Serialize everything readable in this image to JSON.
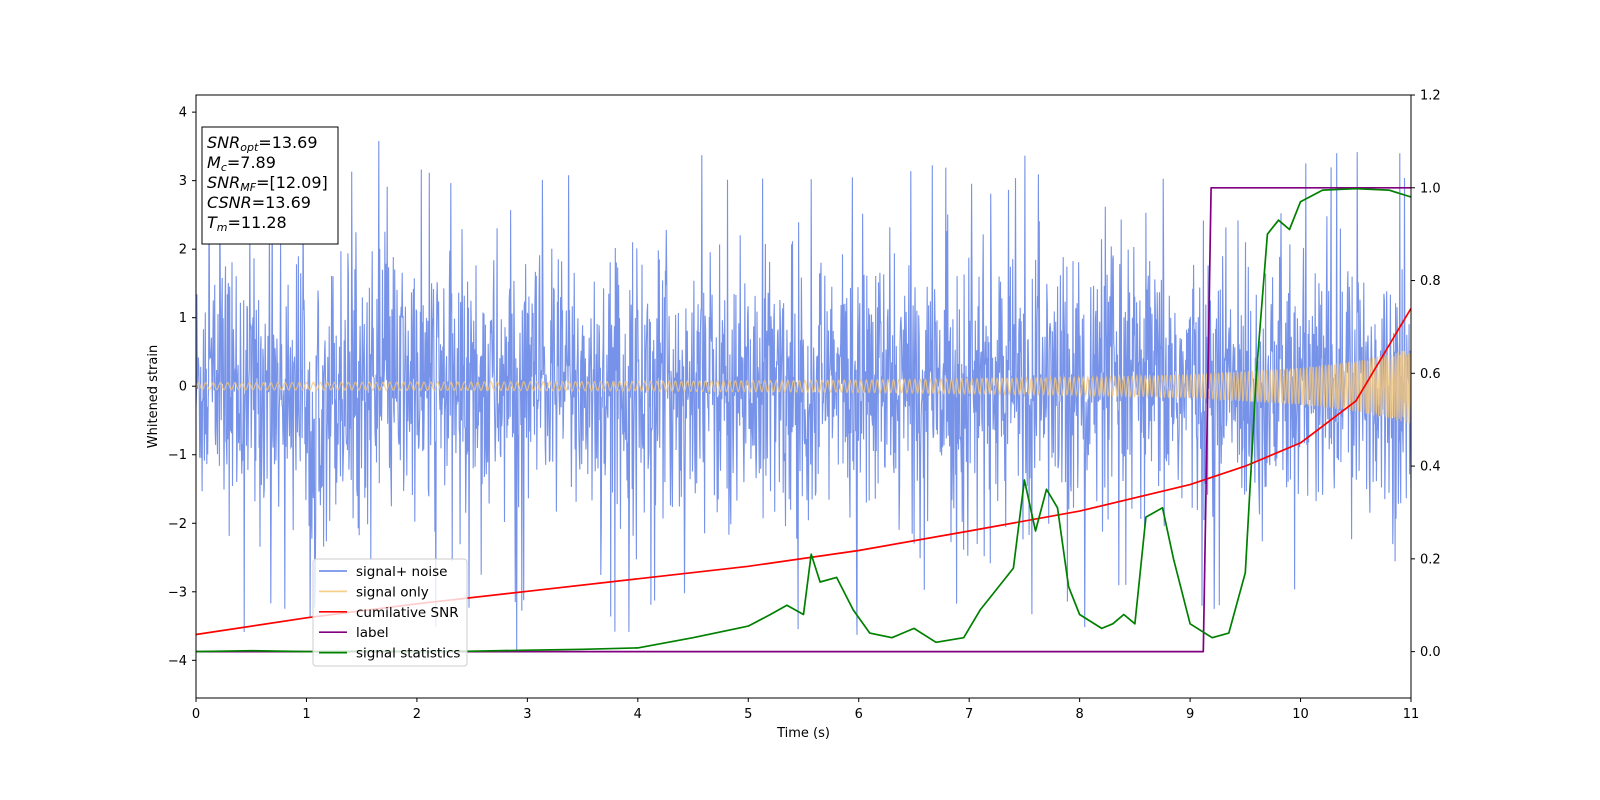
{
  "chart_data": {
    "type": "line",
    "xlabel": "Time (s)",
    "ylabel_left": "Whitened strain",
    "ylabel_right": "",
    "xlim": [
      0,
      11
    ],
    "ylim_left": [
      -4.55,
      4.25
    ],
    "ylim_right": [
      -0.1,
      1.2
    ],
    "x_ticks": [
      0,
      1,
      2,
      3,
      4,
      5,
      6,
      7,
      8,
      9,
      10,
      11
    ],
    "y_ticks_left": [
      -4,
      -3,
      -2,
      -1,
      0,
      1,
      2,
      3,
      4
    ],
    "y_ticks_right": [
      0.0,
      0.2,
      0.4,
      0.6,
      0.8,
      1.0,
      1.2
    ],
    "grid": false,
    "legend_position": "lower-left",
    "annotation": {
      "lines": [
        {
          "main": "SNR",
          "sub": "opt",
          "rest": "=13.69"
        },
        {
          "main": "M",
          "sub": "c",
          "rest": "=7.89"
        },
        {
          "main": "SNR",
          "sub": "MF",
          "rest": "=[12.09]"
        },
        {
          "main": "CSNR",
          "sub": "",
          "rest": "=13.69"
        },
        {
          "main": "T",
          "sub": "m",
          "rest": "=11.28"
        }
      ]
    },
    "series": [
      {
        "name": "signal+ noise",
        "axis": "left",
        "color": "#6f8ce8",
        "style": "noise",
        "noise_envelope_typical": 1.4,
        "noise_extreme_min": -4.15,
        "noise_extreme_max": 3.6,
        "signal_amplitude_start": 0.05,
        "signal_amplitude_end": 0.55
      },
      {
        "name": "signal only",
        "axis": "left",
        "color": "#f5c77a",
        "style": "chirp",
        "envelope_x": [
          0,
          2,
          4,
          6,
          8,
          9,
          10,
          10.5,
          11
        ],
        "envelope_y": [
          0.05,
          0.06,
          0.07,
          0.09,
          0.13,
          0.17,
          0.27,
          0.37,
          0.55
        ]
      },
      {
        "name": "cumilative SNR",
        "axis": "right",
        "color": "#ff0000",
        "x": [
          0,
          1,
          2,
          3,
          4,
          5,
          6,
          7,
          8,
          9,
          9.5,
          10,
          10.5,
          11
        ],
        "y": [
          0.037,
          0.073,
          0.103,
          0.13,
          0.157,
          0.184,
          0.218,
          0.26,
          0.303,
          0.36,
          0.4,
          0.45,
          0.54,
          0.74
        ]
      },
      {
        "name": "label",
        "axis": "right",
        "color": "#800080",
        "x": [
          0,
          9.12,
          9.19,
          11
        ],
        "y": [
          0,
          0,
          1,
          1
        ]
      },
      {
        "name": "signal statistics",
        "axis": "right",
        "color": "#008000",
        "x": [
          0,
          0.5,
          1,
          1.5,
          2,
          2.5,
          3,
          3.5,
          4,
          4.5,
          4.9,
          5.0,
          5.2,
          5.35,
          5.5,
          5.57,
          5.65,
          5.8,
          5.95,
          6.1,
          6.3,
          6.5,
          6.7,
          6.95,
          7.1,
          7.2,
          7.4,
          7.5,
          7.6,
          7.7,
          7.8,
          7.9,
          8.0,
          8.2,
          8.3,
          8.4,
          8.5,
          8.6,
          8.75,
          8.85,
          9.0,
          9.2,
          9.35,
          9.5,
          9.6,
          9.7,
          9.8,
          9.9,
          10.0,
          10.2,
          10.5,
          10.8,
          11
        ],
        "y": [
          0.0,
          0.002,
          0.0,
          0.001,
          0.0,
          0.001,
          0.003,
          0.005,
          0.008,
          0.03,
          0.05,
          0.055,
          0.08,
          0.1,
          0.08,
          0.21,
          0.15,
          0.16,
          0.09,
          0.04,
          0.03,
          0.05,
          0.02,
          0.03,
          0.09,
          0.12,
          0.18,
          0.37,
          0.26,
          0.35,
          0.31,
          0.14,
          0.08,
          0.05,
          0.06,
          0.08,
          0.06,
          0.29,
          0.31,
          0.2,
          0.06,
          0.03,
          0.04,
          0.17,
          0.6,
          0.9,
          0.93,
          0.91,
          0.97,
          0.995,
          0.998,
          0.995,
          0.98
        ]
      }
    ]
  }
}
